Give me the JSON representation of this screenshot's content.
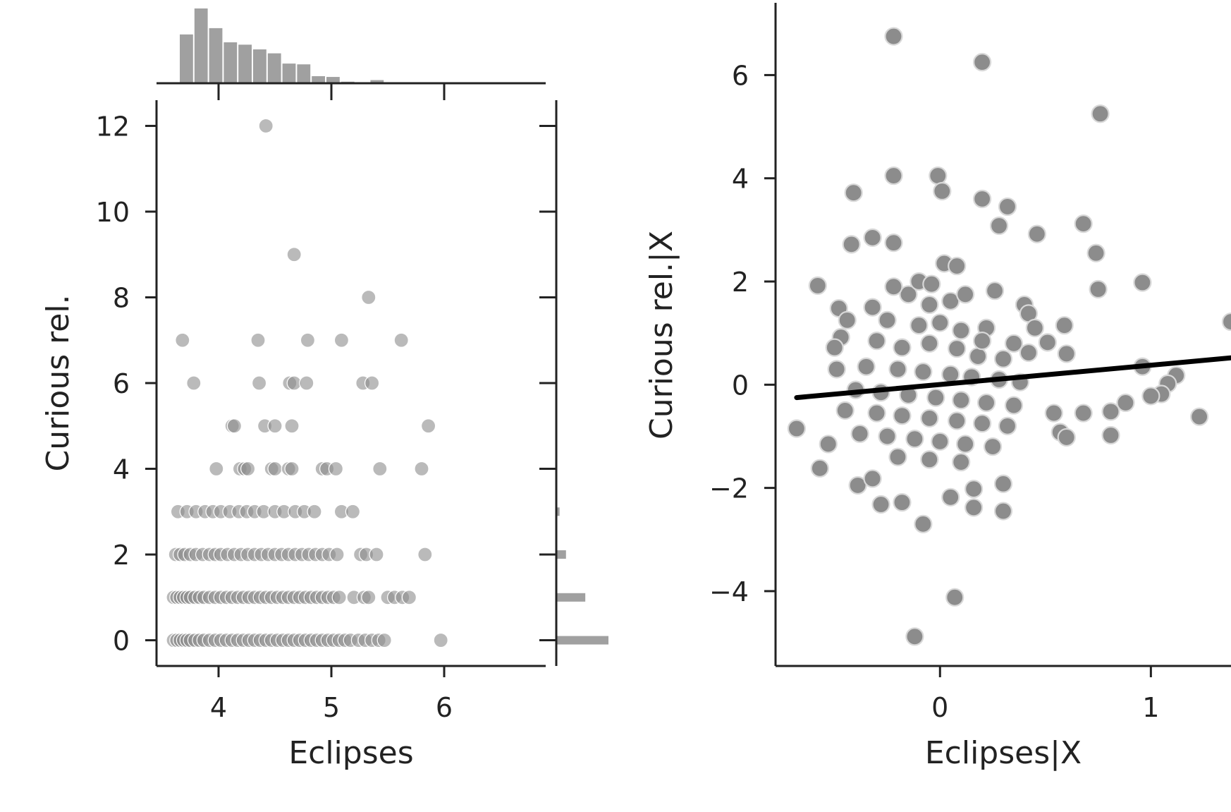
{
  "chart_data": [
    {
      "type": "scatter",
      "variant": "joint-plot-with-marginal-histograms",
      "xlabel": "Eclipses",
      "ylabel": "Curious rel.",
      "xlim": [
        3.45,
        6.9
      ],
      "ylim": [
        -0.6,
        12.6
      ],
      "xticks": [
        4,
        5,
        6
      ],
      "yticks": [
        0,
        2,
        4,
        6,
        8,
        10,
        12
      ],
      "xtick_labels": [
        "4",
        "5",
        "6"
      ],
      "ytick_labels": [
        "0",
        "2",
        "4",
        "6",
        "8",
        "10",
        "12"
      ],
      "point_color": "#8c8c8c",
      "points": [
        [
          4.42,
          12
        ],
        [
          4.67,
          9
        ],
        [
          5.33,
          8
        ],
        [
          3.68,
          7
        ],
        [
          4.35,
          7
        ],
        [
          4.79,
          7
        ],
        [
          5.09,
          7
        ],
        [
          5.62,
          7
        ],
        [
          3.78,
          6
        ],
        [
          4.36,
          6
        ],
        [
          4.63,
          6
        ],
        [
          4.67,
          6
        ],
        [
          4.78,
          6
        ],
        [
          5.28,
          6
        ],
        [
          5.36,
          6
        ],
        [
          4.12,
          5
        ],
        [
          4.14,
          5
        ],
        [
          4.41,
          5
        ],
        [
          4.5,
          5
        ],
        [
          4.65,
          5
        ],
        [
          5.86,
          5
        ],
        [
          3.98,
          4
        ],
        [
          4.19,
          4
        ],
        [
          4.23,
          4
        ],
        [
          4.26,
          4
        ],
        [
          4.47,
          4
        ],
        [
          4.5,
          4
        ],
        [
          4.62,
          4
        ],
        [
          4.65,
          4
        ],
        [
          4.92,
          4
        ],
        [
          4.96,
          4
        ],
        [
          5.04,
          4
        ],
        [
          5.43,
          4
        ],
        [
          5.8,
          4
        ],
        [
          3.64,
          3
        ],
        [
          3.72,
          3
        ],
        [
          3.8,
          3
        ],
        [
          3.88,
          3
        ],
        [
          3.95,
          3
        ],
        [
          4.02,
          3
        ],
        [
          4.1,
          3
        ],
        [
          4.18,
          3
        ],
        [
          4.25,
          3
        ],
        [
          4.32,
          3
        ],
        [
          4.4,
          3
        ],
        [
          4.5,
          3
        ],
        [
          4.58,
          3
        ],
        [
          4.68,
          3
        ],
        [
          4.76,
          3
        ],
        [
          4.85,
          3
        ],
        [
          5.09,
          3
        ],
        [
          5.19,
          3
        ],
        [
          3.62,
          2
        ],
        [
          3.66,
          2
        ],
        [
          3.7,
          2
        ],
        [
          3.75,
          2
        ],
        [
          3.8,
          2
        ],
        [
          3.86,
          2
        ],
        [
          3.92,
          2
        ],
        [
          3.97,
          2
        ],
        [
          4.02,
          2
        ],
        [
          4.08,
          2
        ],
        [
          4.14,
          2
        ],
        [
          4.2,
          2
        ],
        [
          4.26,
          2
        ],
        [
          4.32,
          2
        ],
        [
          4.38,
          2
        ],
        [
          4.44,
          2
        ],
        [
          4.5,
          2
        ],
        [
          4.56,
          2
        ],
        [
          4.62,
          2
        ],
        [
          4.68,
          2
        ],
        [
          4.74,
          2
        ],
        [
          4.8,
          2
        ],
        [
          4.86,
          2
        ],
        [
          4.92,
          2
        ],
        [
          4.98,
          2
        ],
        [
          5.05,
          2
        ],
        [
          5.26,
          2
        ],
        [
          5.31,
          2
        ],
        [
          5.4,
          2
        ],
        [
          5.83,
          2
        ],
        [
          3.6,
          1
        ],
        [
          3.63,
          1
        ],
        [
          3.66,
          1
        ],
        [
          3.69,
          1
        ],
        [
          3.72,
          1
        ],
        [
          3.75,
          1
        ],
        [
          3.79,
          1
        ],
        [
          3.83,
          1
        ],
        [
          3.87,
          1
        ],
        [
          3.92,
          1
        ],
        [
          3.97,
          1
        ],
        [
          4.02,
          1
        ],
        [
          4.07,
          1
        ],
        [
          4.12,
          1
        ],
        [
          4.17,
          1
        ],
        [
          4.22,
          1
        ],
        [
          4.27,
          1
        ],
        [
          4.32,
          1
        ],
        [
          4.37,
          1
        ],
        [
          4.42,
          1
        ],
        [
          4.47,
          1
        ],
        [
          4.52,
          1
        ],
        [
          4.57,
          1
        ],
        [
          4.62,
          1
        ],
        [
          4.67,
          1
        ],
        [
          4.72,
          1
        ],
        [
          4.77,
          1
        ],
        [
          4.82,
          1
        ],
        [
          4.87,
          1
        ],
        [
          4.92,
          1
        ],
        [
          4.97,
          1
        ],
        [
          5.02,
          1
        ],
        [
          5.07,
          1
        ],
        [
          5.2,
          1
        ],
        [
          5.29,
          1
        ],
        [
          5.33,
          1
        ],
        [
          5.5,
          1
        ],
        [
          5.56,
          1
        ],
        [
          5.63,
          1
        ],
        [
          5.69,
          1
        ],
        [
          3.6,
          0
        ],
        [
          3.63,
          0
        ],
        [
          3.66,
          0
        ],
        [
          3.69,
          0
        ],
        [
          3.72,
          0
        ],
        [
          3.75,
          0
        ],
        [
          3.79,
          0
        ],
        [
          3.83,
          0
        ],
        [
          3.87,
          0
        ],
        [
          3.92,
          0
        ],
        [
          3.97,
          0
        ],
        [
          4.02,
          0
        ],
        [
          4.07,
          0
        ],
        [
          4.12,
          0
        ],
        [
          4.17,
          0
        ],
        [
          4.22,
          0
        ],
        [
          4.27,
          0
        ],
        [
          4.32,
          0
        ],
        [
          4.37,
          0
        ],
        [
          4.42,
          0
        ],
        [
          4.47,
          0
        ],
        [
          4.52,
          0
        ],
        [
          4.57,
          0
        ],
        [
          4.62,
          0
        ],
        [
          4.67,
          0
        ],
        [
          4.72,
          0
        ],
        [
          4.77,
          0
        ],
        [
          4.82,
          0
        ],
        [
          4.87,
          0
        ],
        [
          4.92,
          0
        ],
        [
          4.97,
          0
        ],
        [
          5.02,
          0
        ],
        [
          5.07,
          0
        ],
        [
          5.12,
          0
        ],
        [
          5.17,
          0
        ],
        [
          5.24,
          0
        ],
        [
          5.3,
          0
        ],
        [
          5.36,
          0
        ],
        [
          5.42,
          0
        ],
        [
          5.47,
          0
        ],
        [
          5.97,
          0
        ]
      ],
      "marginal_x_hist": {
        "bins": [
          3.65,
          3.78,
          3.91,
          4.04,
          4.17,
          4.3,
          4.43,
          4.56,
          4.69,
          4.82,
          4.95,
          5.08,
          5.21,
          5.34,
          5.47
        ],
        "counts": [
          62,
          95,
          70,
          52,
          49,
          43,
          38,
          25,
          24,
          9,
          8,
          2,
          1,
          4
        ],
        "color": "#a0a0a0"
      },
      "marginal_y_hist": {
        "bins": [
          -0.5,
          0.5,
          1.5,
          2.5,
          3.5
        ],
        "counts": [
          400,
          220,
          70,
          20
        ],
        "color": "#a0a0a0"
      }
    },
    {
      "type": "scatter",
      "variant": "partial-regression",
      "xlabel": "Eclipses|X",
      "ylabel": "Curious rel.|X",
      "xlim": [
        -0.78,
        1.38
      ],
      "ylim": [
        -5.45,
        7.4
      ],
      "xticks": [
        0,
        1
      ],
      "yticks": [
        -4,
        -2,
        0,
        2,
        4,
        6
      ],
      "xtick_labels": [
        "0",
        "1"
      ],
      "ytick_labels": [
        "−4",
        "−2",
        "0",
        "2",
        "4",
        "6"
      ],
      "point_color": "#8c8c8c",
      "regression_line": {
        "x": [
          -0.68,
          1.38
        ],
        "y": [
          -0.25,
          0.52
        ],
        "color": "#000000"
      },
      "points": [
        [
          -0.22,
          6.75
        ],
        [
          0.2,
          6.25
        ],
        [
          0.76,
          5.25
        ],
        [
          -0.22,
          4.05
        ],
        [
          -0.01,
          4.05
        ],
        [
          0.01,
          3.75
        ],
        [
          -0.41,
          3.72
        ],
        [
          0.2,
          3.6
        ],
        [
          0.32,
          3.45
        ],
        [
          0.68,
          3.12
        ],
        [
          0.28,
          3.08
        ],
        [
          0.46,
          2.92
        ],
        [
          -0.32,
          2.85
        ],
        [
          -0.42,
          2.72
        ],
        [
          -0.22,
          2.75
        ],
        [
          0.74,
          2.55
        ],
        [
          0.96,
          1.98
        ],
        [
          0.75,
          1.85
        ],
        [
          -0.48,
          1.48
        ],
        [
          -0.44,
          1.25
        ],
        [
          -0.47,
          0.92
        ],
        [
          -0.5,
          0.72
        ],
        [
          -0.49,
          0.3
        ],
        [
          -0.58,
          1.92
        ],
        [
          0.59,
          1.15
        ],
        [
          0.51,
          0.82
        ],
        [
          0.6,
          0.6
        ],
        [
          1.38,
          1.22
        ],
        [
          0.96,
          0.35
        ],
        [
          1.12,
          0.18
        ],
        [
          1.08,
          0.02
        ],
        [
          1.05,
          -0.18
        ],
        [
          1.0,
          -0.22
        ],
        [
          0.88,
          -0.35
        ],
        [
          0.81,
          -0.52
        ],
        [
          0.68,
          -0.55
        ],
        [
          0.54,
          -0.55
        ],
        [
          0.57,
          -0.92
        ],
        [
          0.6,
          -1.02
        ],
        [
          0.81,
          -0.98
        ],
        [
          1.23,
          -0.62
        ],
        [
          -0.68,
          -0.85
        ],
        [
          -0.53,
          -1.15
        ],
        [
          -0.57,
          -1.62
        ],
        [
          -0.39,
          -1.95
        ],
        [
          -0.32,
          -1.82
        ],
        [
          -0.28,
          -2.32
        ],
        [
          -0.18,
          -2.28
        ],
        [
          -0.08,
          -2.7
        ],
        [
          0.05,
          -2.18
        ],
        [
          0.16,
          -2.02
        ],
        [
          0.16,
          -2.38
        ],
        [
          0.3,
          -1.92
        ],
        [
          0.3,
          -2.45
        ],
        [
          0.07,
          -4.12
        ],
        [
          -0.12,
          -4.88
        ],
        [
          -0.15,
          1.75
        ],
        [
          -0.05,
          1.55
        ],
        [
          0.05,
          1.62
        ],
        [
          0.12,
          1.75
        ],
        [
          -0.25,
          1.25
        ],
        [
          -0.1,
          1.15
        ],
        [
          0.0,
          1.2
        ],
        [
          0.1,
          1.05
        ],
        [
          0.22,
          1.1
        ],
        [
          -0.3,
          0.85
        ],
        [
          -0.18,
          0.72
        ],
        [
          -0.05,
          0.8
        ],
        [
          0.08,
          0.7
        ],
        [
          0.18,
          0.55
        ],
        [
          0.3,
          0.5
        ],
        [
          -0.35,
          0.35
        ],
        [
          -0.2,
          0.3
        ],
        [
          -0.08,
          0.25
        ],
        [
          0.05,
          0.2
        ],
        [
          0.15,
          0.15
        ],
        [
          0.28,
          0.1
        ],
        [
          0.38,
          0.05
        ],
        [
          -0.4,
          -0.1
        ],
        [
          -0.28,
          -0.15
        ],
        [
          -0.15,
          -0.2
        ],
        [
          -0.02,
          -0.25
        ],
        [
          0.1,
          -0.3
        ],
        [
          0.22,
          -0.35
        ],
        [
          0.35,
          -0.4
        ],
        [
          -0.45,
          -0.5
        ],
        [
          -0.3,
          -0.55
        ],
        [
          -0.18,
          -0.6
        ],
        [
          -0.05,
          -0.65
        ],
        [
          0.08,
          -0.7
        ],
        [
          0.2,
          -0.75
        ],
        [
          0.32,
          -0.8
        ],
        [
          -0.38,
          -0.95
        ],
        [
          -0.25,
          -1.0
        ],
        [
          -0.12,
          -1.05
        ],
        [
          0.0,
          -1.1
        ],
        [
          0.12,
          -1.15
        ],
        [
          0.25,
          -1.2
        ],
        [
          -0.2,
          -1.4
        ],
        [
          -0.05,
          -1.45
        ],
        [
          0.1,
          -1.5
        ],
        [
          -0.1,
          2.0
        ],
        [
          0.02,
          2.35
        ],
        [
          0.08,
          2.3
        ],
        [
          -0.04,
          1.95
        ],
        [
          0.4,
          1.55
        ],
        [
          0.42,
          1.38
        ],
        [
          0.45,
          1.1
        ],
        [
          -0.32,
          1.5
        ],
        [
          -0.22,
          1.9
        ],
        [
          0.26,
          1.82
        ],
        [
          0.2,
          0.85
        ],
        [
          0.35,
          0.8
        ],
        [
          0.42,
          0.62
        ]
      ]
    }
  ]
}
